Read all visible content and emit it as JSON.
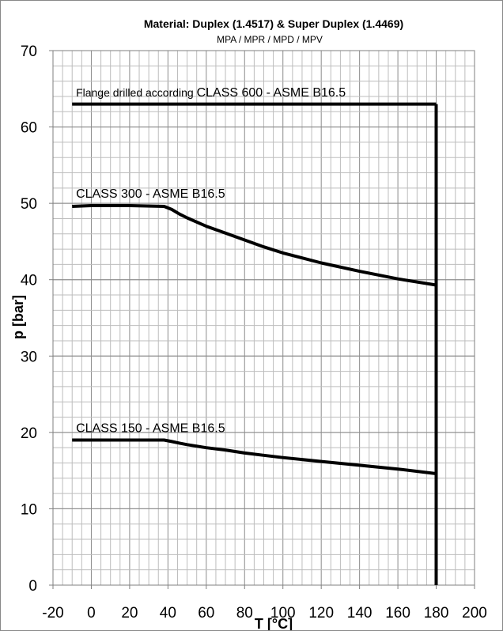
{
  "chart_data": {
    "type": "line",
    "title": "Material: Duplex (1.4517) & Super Duplex (1.4469)",
    "subtitle": "MPA / MPR / MPD / MPV",
    "xlabel": "T [°C]",
    "ylabel": "p [bar]",
    "xlim": [
      -20,
      200
    ],
    "ylim": [
      0,
      70
    ],
    "x_ticks": [
      -20,
      0,
      20,
      40,
      60,
      80,
      100,
      120,
      140,
      160,
      180,
      200
    ],
    "y_ticks": [
      0,
      10,
      20,
      30,
      40,
      50,
      60,
      70
    ],
    "x_minor_step": 5,
    "y_minor_step": 2,
    "grid": true,
    "series": [
      {
        "name": "Flange drilled according CLASS 600 - ASME B16.5",
        "x": [
          -10,
          180
        ],
        "y": [
          63,
          63
        ]
      },
      {
        "name": "CLASS 300 - ASME B16.5",
        "x": [
          -10,
          0,
          20,
          38,
          42,
          46,
          50,
          60,
          70,
          80,
          90,
          100,
          120,
          140,
          160,
          180
        ],
        "y": [
          49.6,
          49.7,
          49.7,
          49.6,
          49.2,
          48.6,
          48.1,
          47.0,
          46.1,
          45.2,
          44.3,
          43.5,
          42.2,
          41.1,
          40.1,
          39.3
        ]
      },
      {
        "name": "CLASS 150 - ASME B16.5",
        "x": [
          -10,
          0,
          20,
          38,
          42,
          46,
          50,
          60,
          70,
          80,
          90,
          100,
          120,
          140,
          160,
          180
        ],
        "y": [
          19.0,
          19.0,
          19.0,
          19.0,
          18.8,
          18.6,
          18.4,
          18.0,
          17.7,
          17.3,
          17.0,
          16.7,
          16.2,
          15.7,
          15.2,
          14.6
        ]
      },
      {
        "name": "",
        "x": [
          180,
          180
        ],
        "y": [
          63,
          0
        ]
      }
    ],
    "labels": [
      {
        "text": "Flange drilled according ",
        "emphasis": "CLASS 600 - ASME B16.5",
        "x": -8,
        "y": 63.6
      },
      {
        "text": "CLASS 300 - ASME B16.5",
        "x": -8,
        "y": 50.3
      },
      {
        "text": "CLASS 150 - ASME B16.5",
        "x": -8,
        "y": 19.6
      }
    ],
    "colors": {
      "line": "#000000",
      "grid_major": "#8c8c8c",
      "grid_minor": "#bdbdbd",
      "background": "#ffffff"
    }
  }
}
